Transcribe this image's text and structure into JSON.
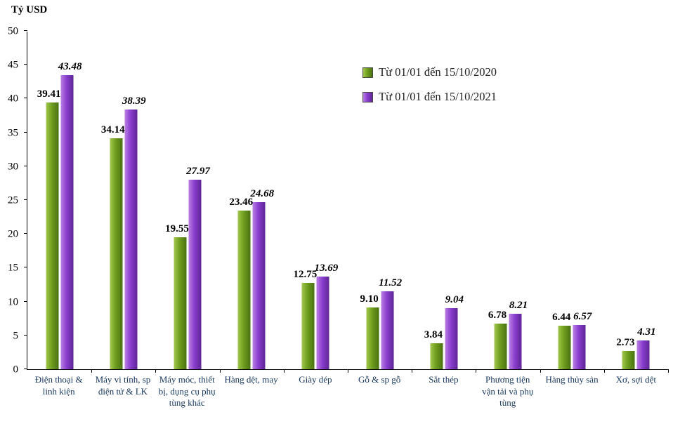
{
  "chart_data": {
    "type": "bar",
    "title": "",
    "ylabel": "Tỷ USD",
    "xlabel": "",
    "ylim": [
      0,
      50
    ],
    "yticks": [
      0,
      5,
      10,
      15,
      20,
      25,
      30,
      35,
      40,
      45,
      50
    ],
    "grid": false,
    "legend_position": "top-center",
    "categories": [
      "Điện thoại & linh kiện",
      "Máy vi tính, sp điện tử & LK",
      "Máy móc, thiết bị, dụng cụ phụ tùng khác",
      "Hàng dệt, may",
      "Giày dép",
      "Gỗ & sp gỗ",
      "Sắt thép",
      "Phương tiện vận tải và phụ tùng",
      "Hàng thủy sản",
      "Xơ, sợi dệt"
    ],
    "series": [
      {
        "name": "Từ 01/01 đến 15/10/2020",
        "key": "2020",
        "color": "#6f9e1e",
        "gradient": [
          "#a2c84e",
          "#6f9e1e",
          "#4a7212"
        ],
        "label_italic": false,
        "values": [
          39.41,
          34.14,
          19.55,
          23.46,
          12.75,
          9.1,
          3.84,
          6.78,
          6.44,
          2.73
        ]
      },
      {
        "name": "Từ 01/01 đến 15/10/2021",
        "key": "2021",
        "color": "#8a3ecf",
        "gradient": [
          "#bb80e4",
          "#8a3ecf",
          "#5e2596"
        ],
        "label_italic": true,
        "values": [
          43.48,
          38.39,
          27.97,
          24.68,
          13.69,
          11.52,
          9.04,
          8.21,
          6.57,
          4.31
        ]
      }
    ]
  }
}
